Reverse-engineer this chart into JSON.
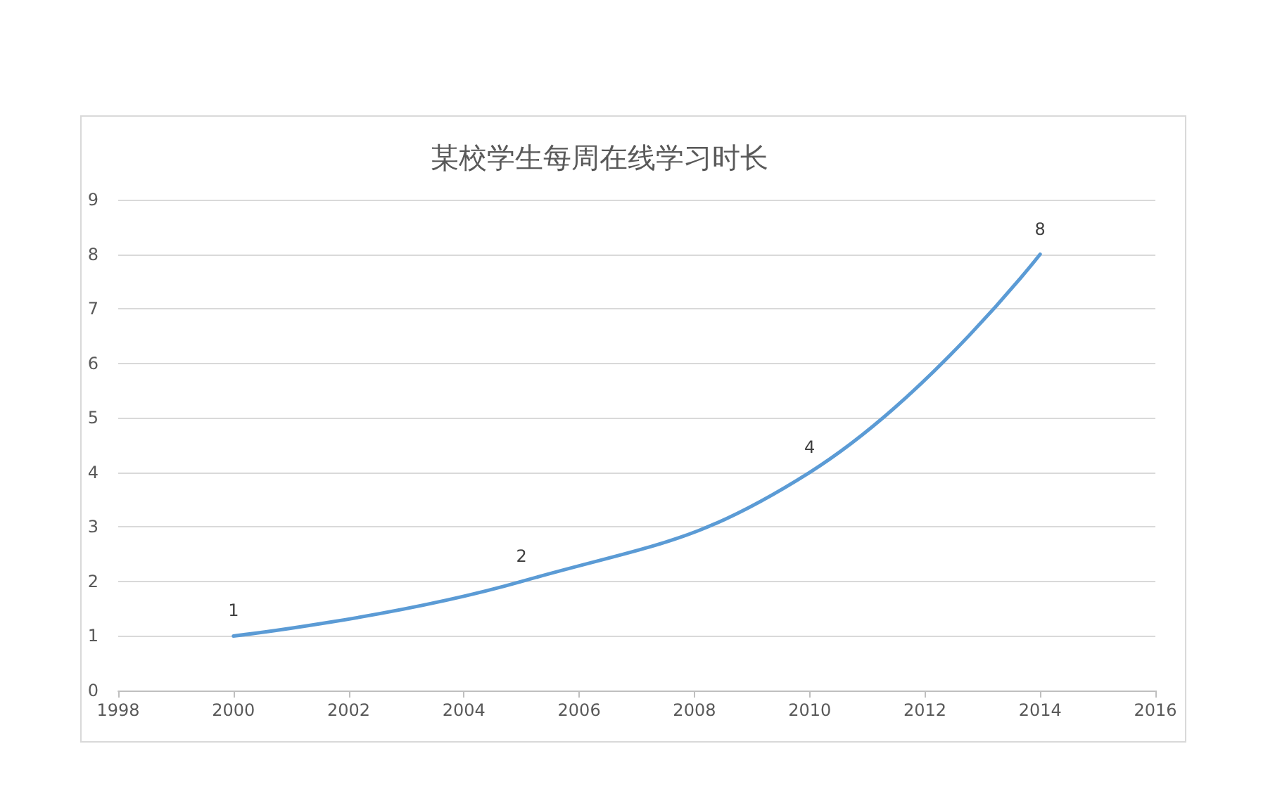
{
  "chart_data": {
    "type": "line",
    "title": "某校学生每周在线学习时长",
    "x": [
      2000,
      2005,
      2010,
      2014
    ],
    "series": [
      {
        "color": "#5b9bd5",
        "values": [
          1,
          2,
          4,
          8
        ]
      }
    ],
    "xlim": [
      1998,
      2016
    ],
    "xticks": [
      1998,
      2000,
      2002,
      2004,
      2006,
      2008,
      2010,
      2012,
      2014,
      2016
    ],
    "ylim": [
      0,
      9
    ],
    "yticks": [
      0,
      1,
      2,
      3,
      4,
      5,
      6,
      7,
      8,
      9
    ],
    "grid": "y",
    "data_labels": true,
    "marker": "none",
    "line_style": "solid"
  }
}
